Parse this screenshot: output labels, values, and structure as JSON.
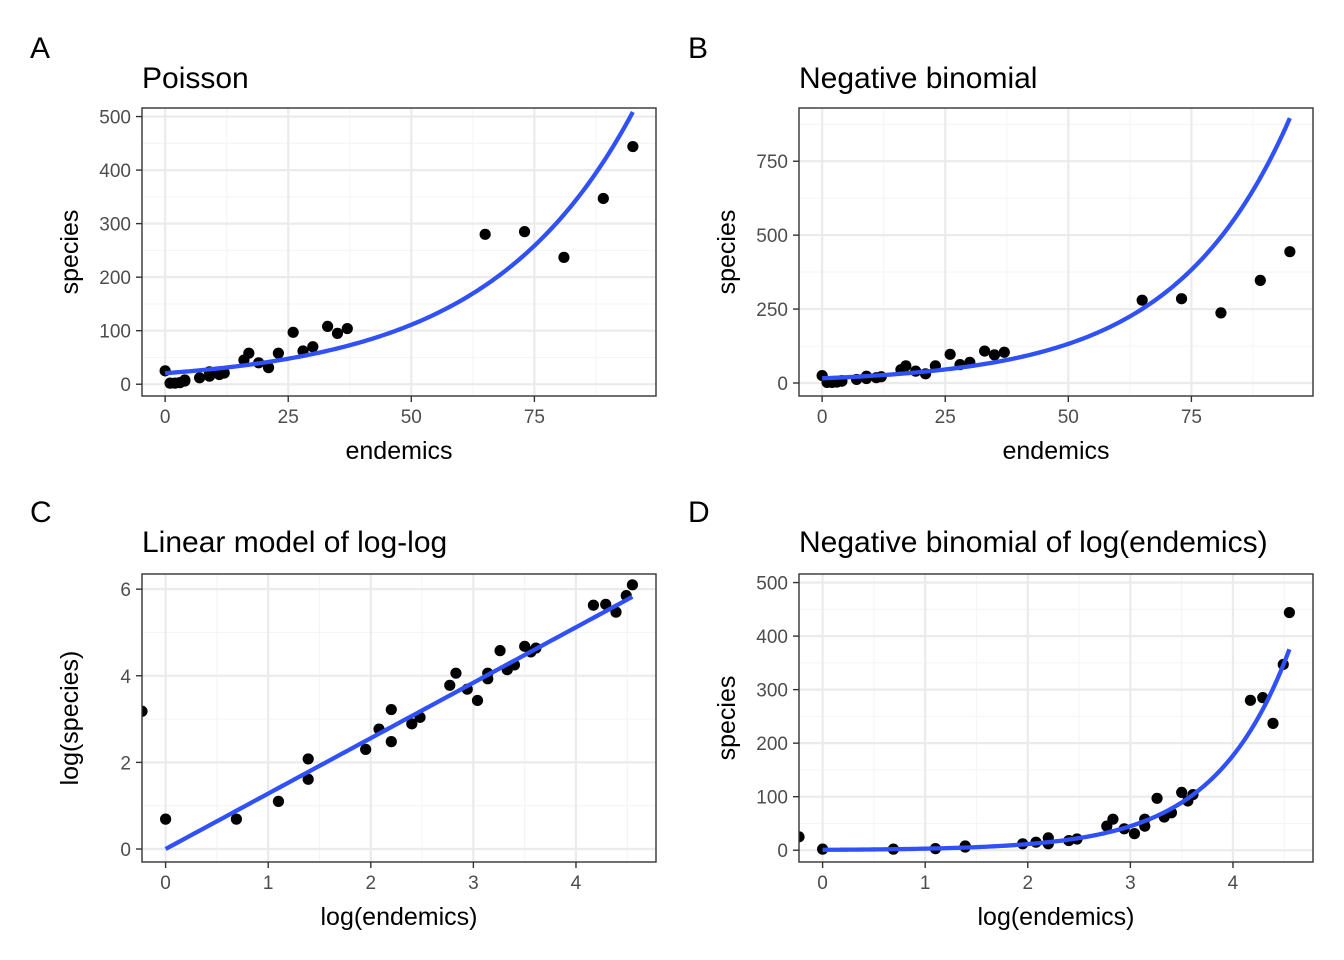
{
  "colors": {
    "fit_line": "#3050f8",
    "points": "#000000",
    "grid_major": "#ebebeb",
    "grid_minor": "#f5f5f5",
    "panel_border": "#333333",
    "tick_text": "#4d4d4d"
  },
  "chart_data": [
    {
      "id": "A",
      "letter": "A",
      "type": "scatter",
      "title": "Poisson",
      "xlabel": "endemics",
      "ylabel": "species",
      "xlim": [
        -4.7,
        99.7
      ],
      "ylim": [
        -22,
        516
      ],
      "x_ticks": [
        0,
        25,
        50,
        75
      ],
      "y_ticks": [
        0,
        100,
        200,
        300,
        400,
        500
      ],
      "x_tick_labels": [
        "0",
        "25",
        "50",
        "75"
      ],
      "y_tick_labels": [
        "0",
        "100",
        "200",
        "300",
        "400",
        "500"
      ],
      "grid": true,
      "points": [
        [
          0,
          25
        ],
        [
          1,
          2
        ],
        [
          2,
          2
        ],
        [
          3,
          3
        ],
        [
          4,
          6
        ],
        [
          4,
          8
        ],
        [
          7,
          12
        ],
        [
          9,
          15
        ],
        [
          9,
          23
        ],
        [
          11,
          18
        ],
        [
          12,
          21
        ],
        [
          16,
          45
        ],
        [
          17,
          58
        ],
        [
          19,
          40
        ],
        [
          21,
          31
        ],
        [
          23,
          58
        ],
        [
          26,
          97
        ],
        [
          28,
          62
        ],
        [
          30,
          70
        ],
        [
          33,
          108
        ],
        [
          35,
          95
        ],
        [
          37,
          104
        ],
        [
          65,
          280
        ],
        [
          73,
          285
        ],
        [
          81,
          237
        ],
        [
          89,
          347
        ],
        [
          95,
          444
        ]
      ],
      "fit": {
        "type": "exp",
        "a": 20.5,
        "b": 0.0338,
        "x_from": 0,
        "x_to": 95
      }
    },
    {
      "id": "B",
      "letter": "B",
      "type": "scatter",
      "title": "Negative binomial",
      "xlabel": "endemics",
      "ylabel": "species",
      "xlim": [
        -4.7,
        99.7
      ],
      "ylim": [
        -44,
        930
      ],
      "x_ticks": [
        0,
        25,
        50,
        75
      ],
      "y_ticks": [
        0,
        250,
        500,
        750
      ],
      "x_tick_labels": [
        "0",
        "25",
        "50",
        "75"
      ],
      "y_tick_labels": [
        "0",
        "250",
        "500",
        "750"
      ],
      "grid": true,
      "points": [
        [
          0,
          25
        ],
        [
          1,
          2
        ],
        [
          2,
          2
        ],
        [
          3,
          3
        ],
        [
          4,
          6
        ],
        [
          4,
          8
        ],
        [
          7,
          12
        ],
        [
          9,
          15
        ],
        [
          9,
          23
        ],
        [
          11,
          18
        ],
        [
          12,
          21
        ],
        [
          16,
          45
        ],
        [
          17,
          58
        ],
        [
          19,
          40
        ],
        [
          21,
          31
        ],
        [
          23,
          58
        ],
        [
          26,
          97
        ],
        [
          28,
          62
        ],
        [
          30,
          70
        ],
        [
          33,
          108
        ],
        [
          35,
          95
        ],
        [
          37,
          104
        ],
        [
          65,
          280
        ],
        [
          73,
          285
        ],
        [
          81,
          237
        ],
        [
          89,
          347
        ],
        [
          95,
          444
        ]
      ],
      "fit": {
        "type": "exp",
        "a": 15.8,
        "b": 0.0425,
        "x_from": 0,
        "x_to": 95
      }
    },
    {
      "id": "C",
      "letter": "C",
      "type": "scatter",
      "title": "Linear model of log-log",
      "xlabel": "log(endemics)",
      "ylabel": "log(species)",
      "xlim": [
        -0.23,
        4.78
      ],
      "ylim": [
        -0.3,
        6.35
      ],
      "x_ticks": [
        0,
        1,
        2,
        3,
        4
      ],
      "y_ticks": [
        0,
        2,
        4,
        6
      ],
      "x_tick_labels": [
        "0",
        "1",
        "2",
        "3",
        "4"
      ],
      "y_tick_labels": [
        "0",
        "2",
        "4",
        "6"
      ],
      "grid": true,
      "points": [
        [
          -0.23,
          3.18
        ],
        [
          0,
          0.69
        ],
        [
          0.69,
          0.69
        ],
        [
          1.1,
          1.1
        ],
        [
          1.39,
          1.61
        ],
        [
          1.39,
          2.08
        ],
        [
          1.95,
          2.3
        ],
        [
          2.08,
          2.77
        ],
        [
          2.2,
          2.48
        ],
        [
          2.2,
          3.22
        ],
        [
          2.4,
          2.89
        ],
        [
          2.48,
          3.04
        ],
        [
          2.77,
          3.78
        ],
        [
          2.83,
          4.06
        ],
        [
          2.94,
          3.69
        ],
        [
          3.04,
          3.43
        ],
        [
          3.14,
          3.93
        ],
        [
          3.14,
          4.06
        ],
        [
          3.26,
          4.58
        ],
        [
          3.33,
          4.14
        ],
        [
          3.4,
          4.25
        ],
        [
          3.5,
          4.68
        ],
        [
          3.56,
          4.55
        ],
        [
          3.61,
          4.64
        ],
        [
          4.17,
          5.63
        ],
        [
          4.29,
          5.65
        ],
        [
          4.39,
          5.47
        ],
        [
          4.49,
          5.85
        ],
        [
          4.55,
          6.1
        ]
      ],
      "fit": {
        "type": "linear",
        "m": 1.28,
        "c": 0.0,
        "x_from": 0,
        "x_to": 4.55
      }
    },
    {
      "id": "D",
      "letter": "D",
      "type": "scatter",
      "title": "Negative binomial of log(endemics)",
      "xlabel": "log(endemics)",
      "ylabel": "species",
      "xlim": [
        -0.23,
        4.78
      ],
      "ylim": [
        -22,
        516
      ],
      "x_ticks": [
        0,
        1,
        2,
        3,
        4
      ],
      "y_ticks": [
        0,
        100,
        200,
        300,
        400,
        500
      ],
      "x_tick_labels": [
        "0",
        "1",
        "2",
        "3",
        "4"
      ],
      "y_tick_labels": [
        "0",
        "100",
        "200",
        "300",
        "400",
        "500"
      ],
      "grid": true,
      "points": [
        [
          -0.23,
          25
        ],
        [
          0,
          2
        ],
        [
          0.69,
          2
        ],
        [
          1.1,
          3
        ],
        [
          1.39,
          6
        ],
        [
          1.39,
          8
        ],
        [
          1.95,
          12
        ],
        [
          2.08,
          15
        ],
        [
          2.2,
          23
        ],
        [
          2.2,
          12
        ],
        [
          2.4,
          18
        ],
        [
          2.48,
          21
        ],
        [
          2.77,
          45
        ],
        [
          2.83,
          58
        ],
        [
          2.94,
          40
        ],
        [
          3.04,
          31
        ],
        [
          3.14,
          58
        ],
        [
          3.14,
          45
        ],
        [
          3.26,
          97
        ],
        [
          3.33,
          62
        ],
        [
          3.4,
          70
        ],
        [
          3.5,
          108
        ],
        [
          3.56,
          92
        ],
        [
          3.61,
          104
        ],
        [
          4.17,
          280
        ],
        [
          4.29,
          285
        ],
        [
          4.39,
          237
        ],
        [
          4.49,
          347
        ],
        [
          4.55,
          444
        ]
      ],
      "fit": {
        "type": "exp",
        "a": 0.74,
        "b": 1.369,
        "x_from": 0,
        "x_to": 4.55
      }
    }
  ]
}
